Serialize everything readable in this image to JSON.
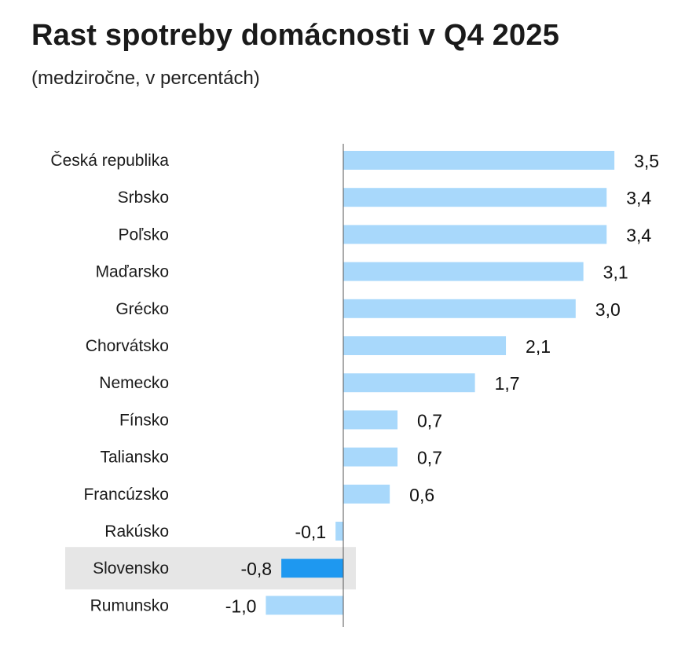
{
  "chart_data": {
    "type": "bar",
    "orientation": "horizontal",
    "title": "Rast spotreby domácnosti v Q4 2025",
    "subtitle": "(medziročne, v percentách)",
    "categories": [
      "Česká republika",
      "Srbsko",
      "Poľsko",
      "Maďarsko",
      "Grécko",
      "Chorvátsko",
      "Nemecko",
      "Fínsko",
      "Taliansko",
      "Francúzsko",
      "Rakúsko",
      "Slovensko",
      "Rumunsko"
    ],
    "values": [
      3.5,
      3.4,
      3.4,
      3.1,
      3.0,
      2.1,
      1.7,
      0.7,
      0.7,
      0.6,
      -0.1,
      -0.8,
      -1.0
    ],
    "value_labels": [
      "3,5",
      "3,4",
      "3,4",
      "3,1",
      "3,0",
      "2,1",
      "1,7",
      "0,7",
      "0,7",
      "0,6",
      "-0,1",
      "-0,8",
      "-1,0"
    ],
    "highlight": "Slovensko",
    "xlim": [
      -1.0,
      3.5
    ],
    "grid": false,
    "colors": {
      "bar": "#a8d8fb",
      "highlight_bar": "#1e98f0",
      "highlight_band": "#e6e6e6",
      "axis": "#555555"
    }
  }
}
